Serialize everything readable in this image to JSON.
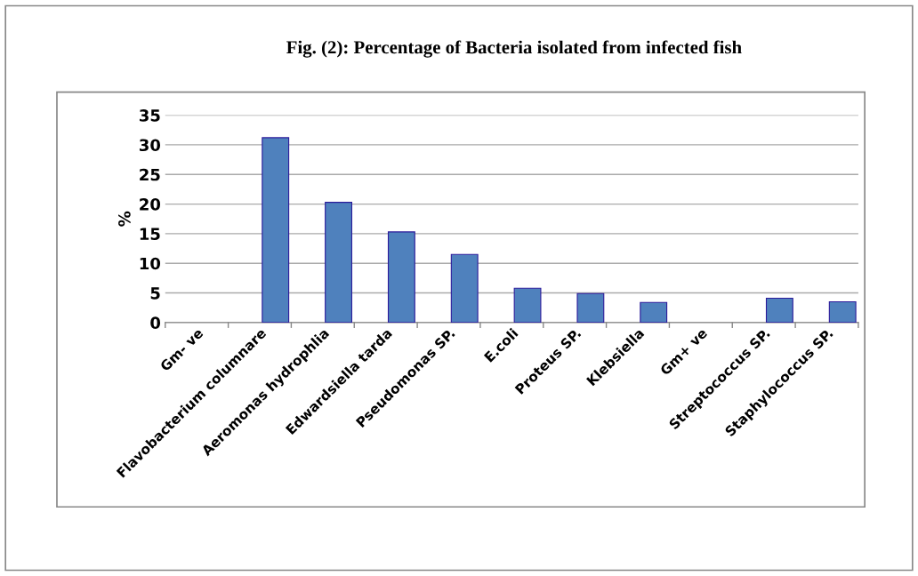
{
  "chart_data": {
    "type": "bar",
    "title": "Fig. (2): Percentage of Bacteria isolated from infected fish",
    "ylabel": "%",
    "categories": [
      "Gm- ve",
      "Flavobacterium columnare",
      "Aeromonas hydrophlia",
      "Edwardsiella tarda",
      "Pseudomonas SP.",
      "E.coli",
      "Proteus SP.",
      "Klebsiella",
      "Gm+ ve",
      "Streptococcus SP.",
      "Staphylococcus SP."
    ],
    "values": [
      null,
      31.2,
      20.3,
      15.3,
      11.5,
      5.8,
      4.9,
      3.4,
      null,
      4.1,
      3.5
    ],
    "color": "#4f81bd",
    "ylim": [
      0,
      35
    ],
    "yticks": [
      0,
      5,
      10,
      15,
      20,
      25,
      30,
      35
    ],
    "grid": "y",
    "legend": false
  }
}
